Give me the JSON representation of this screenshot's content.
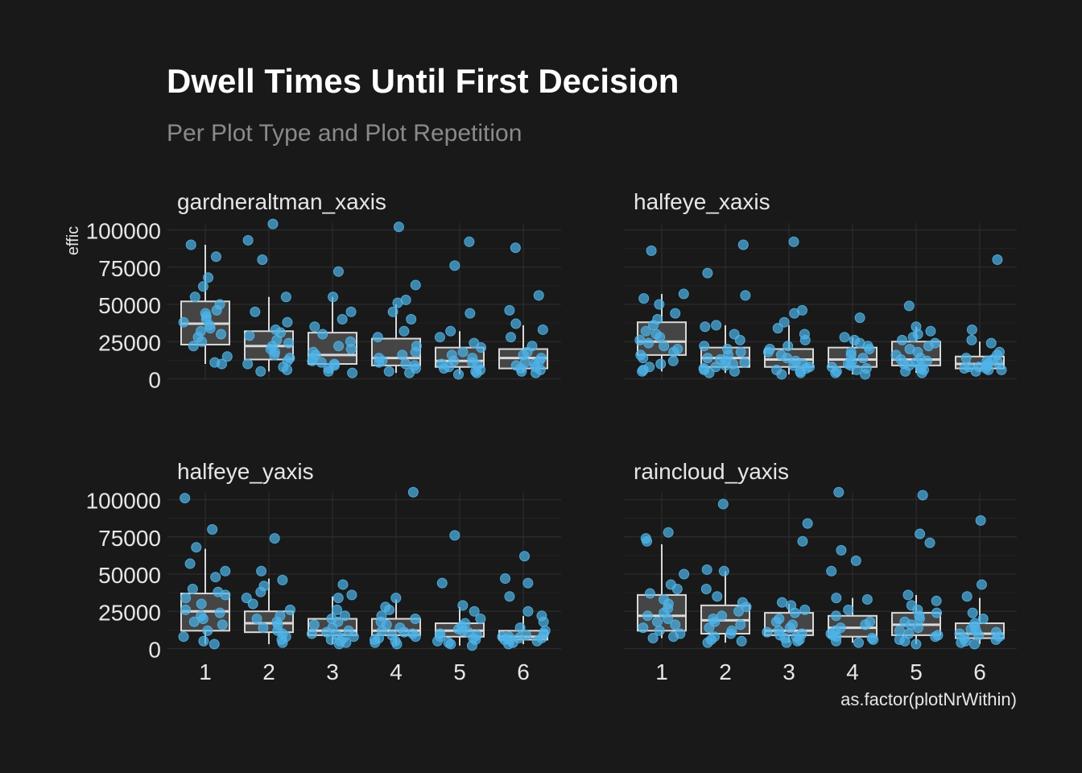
{
  "title": "Dwell Times Until First Decision",
  "subtitle": "Per Plot Type and Plot Repetition",
  "colors": {
    "background": "#191919",
    "point": "#4fb3e8",
    "box_fill": "#4a4a4a",
    "box_stroke": "#d9d9d9",
    "grid": "#2c2c2c",
    "text": "#e6e6e6",
    "subtitle": "#8a8a8a"
  },
  "chart_data": {
    "type": "boxplot",
    "title": "Dwell Times Until First Decision",
    "subtitle": "Per Plot Type and Plot Repetition",
    "xlabel": "as.factor(plotNrWithin)",
    "ylabel": "effic",
    "categories": [
      "1",
      "2",
      "3",
      "4",
      "5",
      "6"
    ],
    "y_ticks": [
      0,
      25000,
      50000,
      75000,
      100000
    ],
    "y_tick_labels": [
      "0",
      "25000",
      "50000",
      "75000",
      "100000"
    ],
    "ylim": [
      0,
      105000
    ],
    "grid": true,
    "facets": [
      {
        "label": "gardneraltman_xaxis",
        "boxes": [
          {
            "category": "1",
            "q1": 23000,
            "median": 37000,
            "q3": 52000,
            "whisker_low": 10000,
            "whisker_high": 90000
          },
          {
            "category": "2",
            "q1": 13000,
            "median": 22000,
            "q3": 32000,
            "whisker_low": 5000,
            "whisker_high": 55000
          },
          {
            "category": "3",
            "q1": 10000,
            "median": 16000,
            "q3": 31000,
            "whisker_low": 4000,
            "whisker_high": 55000
          },
          {
            "category": "4",
            "q1": 9000,
            "median": 14000,
            "q3": 27000,
            "whisker_low": 4000,
            "whisker_high": 50000
          },
          {
            "category": "5",
            "q1": 8000,
            "median": 12000,
            "q3": 21000,
            "whisker_low": 3000,
            "whisker_high": 32000
          },
          {
            "category": "6",
            "q1": 7000,
            "median": 14000,
            "q3": 20000,
            "whisker_low": 4000,
            "whisker_high": 36000
          }
        ],
        "points": [
          [
            90000,
            82000,
            68000,
            62000,
            55000,
            50000,
            46000,
            44000,
            42000,
            40000,
            38000,
            36000,
            34000,
            32000,
            30000,
            28000,
            25000,
            22000,
            15000,
            11000,
            10000
          ],
          [
            104000,
            93000,
            80000,
            55000,
            45000,
            38000,
            33000,
            31000,
            29000,
            26000,
            24000,
            22000,
            20000,
            18000,
            16000,
            14000,
            12000,
            10000,
            8000,
            6000,
            5000
          ],
          [
            72000,
            55000,
            45000,
            40000,
            35000,
            30000,
            25000,
            22000,
            20000,
            18000,
            16000,
            14000,
            12000,
            11000,
            10000,
            9000,
            7000,
            5000,
            4000
          ],
          [
            102000,
            63000,
            53000,
            51000,
            45000,
            40000,
            32000,
            28000,
            22000,
            18000,
            16000,
            14000,
            12000,
            11000,
            10000,
            9000,
            7000,
            5000,
            4000
          ],
          [
            92000,
            76000,
            44000,
            32000,
            28000,
            24000,
            21000,
            18000,
            16000,
            14000,
            12000,
            11000,
            10000,
            9000,
            8000,
            7000,
            6000,
            5000,
            4000,
            3000
          ],
          [
            88000,
            56000,
            46000,
            37000,
            33000,
            28000,
            22000,
            18000,
            16000,
            14000,
            12000,
            11000,
            10000,
            9000,
            8000,
            7000,
            6000,
            5000,
            4000
          ]
        ]
      },
      {
        "label": "halfeye_xaxis",
        "boxes": [
          {
            "category": "1",
            "q1": 16000,
            "median": 25000,
            "q3": 38000,
            "whisker_low": 5000,
            "whisker_high": 57000
          },
          {
            "category": "2",
            "q1": 8000,
            "median": 14000,
            "q3": 21000,
            "whisker_low": 4000,
            "whisker_high": 36000
          },
          {
            "category": "3",
            "q1": 8000,
            "median": 13000,
            "q3": 20000,
            "whisker_low": 3000,
            "whisker_high": 36000
          },
          {
            "category": "4",
            "q1": 8000,
            "median": 13000,
            "q3": 21000,
            "whisker_low": 3000,
            "whisker_high": 28000
          },
          {
            "category": "5",
            "q1": 9000,
            "median": 13000,
            "q3": 25000,
            "whisker_low": 4000,
            "whisker_high": 35000
          },
          {
            "category": "6",
            "q1": 7000,
            "median": 10000,
            "q3": 15000,
            "whisker_low": 5000,
            "whisker_high": 25000
          }
        ],
        "points": [
          [
            86000,
            57000,
            54000,
            50000,
            44000,
            40000,
            36000,
            32000,
            30000,
            28000,
            26000,
            24000,
            22000,
            20000,
            18000,
            16000,
            14000,
            12000,
            10000,
            8000,
            6000,
            5000
          ],
          [
            90000,
            71000,
            56000,
            36000,
            35000,
            30000,
            26000,
            22000,
            20000,
            18000,
            16000,
            14000,
            13000,
            12000,
            11000,
            10000,
            9000,
            8000,
            7000,
            6000,
            5000,
            4000
          ],
          [
            92000,
            46000,
            44000,
            38000,
            34000,
            30000,
            26000,
            22000,
            20000,
            18000,
            16000,
            14000,
            12000,
            10000,
            9000,
            8000,
            7000,
            6000,
            5000,
            4000,
            3000
          ],
          [
            41000,
            28000,
            26000,
            24000,
            22000,
            20000,
            18000,
            16000,
            14000,
            12000,
            10000,
            9000,
            8000,
            7000,
            6000,
            5000,
            4000,
            3000
          ],
          [
            49000,
            35000,
            32000,
            30000,
            28000,
            26000,
            24000,
            22000,
            20000,
            18000,
            16000,
            14000,
            13000,
            12000,
            11000,
            10000,
            9000,
            8000,
            7000,
            6000,
            5000,
            4000
          ],
          [
            80000,
            33000,
            26000,
            24000,
            18000,
            16000,
            14000,
            13000,
            12000,
            11000,
            10000,
            9000,
            9000,
            8000,
            8000,
            7000,
            7000,
            6000,
            6000,
            5000
          ]
        ]
      },
      {
        "label": "halfeye_yaxis",
        "boxes": [
          {
            "category": "1",
            "q1": 12000,
            "median": 25000,
            "q3": 37000,
            "whisker_low": 3000,
            "whisker_high": 67000
          },
          {
            "category": "2",
            "q1": 11000,
            "median": 17000,
            "q3": 25000,
            "whisker_low": 3000,
            "whisker_high": 47000
          },
          {
            "category": "3",
            "q1": 9000,
            "median": 12000,
            "q3": 20000,
            "whisker_low": 3000,
            "whisker_high": 35000
          },
          {
            "category": "4",
            "q1": 9000,
            "median": 12000,
            "q3": 20000,
            "whisker_low": 3000,
            "whisker_high": 33000
          },
          {
            "category": "5",
            "q1": 8000,
            "median": 12000,
            "q3": 17000,
            "whisker_low": 2000,
            "whisker_high": 28000
          },
          {
            "category": "6",
            "q1": 6000,
            "median": 8000,
            "q3": 12000,
            "whisker_low": 3000,
            "whisker_high": 22000
          }
        ],
        "points": [
          [
            101000,
            80000,
            68000,
            57000,
            52000,
            48000,
            40000,
            38000,
            36000,
            34000,
            30000,
            26000,
            24000,
            22000,
            20000,
            18000,
            16000,
            12000,
            8000,
            5000,
            3000
          ],
          [
            74000,
            52000,
            46000,
            42000,
            38000,
            34000,
            30000,
            26000,
            22000,
            20000,
            18000,
            16000,
            14000,
            12000,
            10000,
            8000,
            6000,
            4000
          ],
          [
            43000,
            36000,
            34000,
            26000,
            22000,
            20000,
            18000,
            16000,
            14000,
            12000,
            11000,
            10000,
            9000,
            8000,
            7000,
            6000,
            5000,
            4000,
            3000
          ],
          [
            105000,
            34000,
            28000,
            26000,
            22000,
            20000,
            18000,
            16000,
            14000,
            12000,
            11000,
            10000,
            9000,
            8000,
            7000,
            6000,
            5000,
            4000,
            3000
          ],
          [
            76000,
            44000,
            29000,
            25000,
            20000,
            17000,
            15000,
            13000,
            12000,
            11000,
            10000,
            9000,
            8000,
            7000,
            6000,
            5000,
            4000,
            3000,
            2000
          ],
          [
            62000,
            47000,
            44000,
            35000,
            25000,
            22000,
            18000,
            14000,
            12000,
            10000,
            9000,
            8000,
            8000,
            7000,
            7000,
            6000,
            6000,
            5000,
            4000,
            3000
          ]
        ]
      },
      {
        "label": "raincloud_yaxis",
        "boxes": [
          {
            "category": "1",
            "q1": 12000,
            "median": 22000,
            "q3": 36000,
            "whisker_low": 7000,
            "whisker_high": 70000
          },
          {
            "category": "2",
            "q1": 10000,
            "median": 19000,
            "q3": 29000,
            "whisker_low": 4000,
            "whisker_high": 52000
          },
          {
            "category": "3",
            "q1": 9000,
            "median": 12000,
            "q3": 24000,
            "whisker_low": 4000,
            "whisker_high": 30000
          },
          {
            "category": "4",
            "q1": 8000,
            "median": 14000,
            "q3": 22000,
            "whisker_low": 4000,
            "whisker_high": 34000
          },
          {
            "category": "5",
            "q1": 9000,
            "median": 16000,
            "q3": 24000,
            "whisker_low": 3000,
            "whisker_high": 36000
          },
          {
            "category": "6",
            "q1": 7000,
            "median": 10000,
            "q3": 17000,
            "whisker_low": 3000,
            "whisker_high": 34000
          }
        ],
        "points": [
          [
            78000,
            74000,
            72000,
            50000,
            43000,
            40000,
            37000,
            33000,
            30000,
            27000,
            24000,
            22000,
            20000,
            18000,
            16000,
            14000,
            12000,
            10000,
            8000,
            7000
          ],
          [
            97000,
            53000,
            52000,
            40000,
            35000,
            31000,
            28000,
            25000,
            22000,
            20000,
            18000,
            16000,
            14000,
            12000,
            10000,
            8000,
            6000,
            5000,
            4000
          ],
          [
            84000,
            72000,
            31000,
            29000,
            26000,
            24000,
            20000,
            18000,
            16000,
            14000,
            12000,
            11000,
            10000,
            9000,
            8000,
            7000,
            6000,
            5000,
            4000
          ],
          [
            105000,
            66000,
            59000,
            52000,
            34000,
            33000,
            26000,
            22000,
            18000,
            16000,
            14000,
            12000,
            10000,
            9000,
            8000,
            7000,
            6000,
            5000,
            4000
          ],
          [
            103000,
            77000,
            71000,
            36000,
            32000,
            29000,
            26000,
            24000,
            22000,
            20000,
            18000,
            16000,
            14000,
            12000,
            10000,
            9000,
            8000,
            6000,
            5000,
            3000
          ],
          [
            86000,
            43000,
            35000,
            24000,
            20000,
            17000,
            15000,
            13000,
            12000,
            11000,
            10000,
            9000,
            8000,
            7000,
            6000,
            5000,
            4000,
            3000
          ]
        ]
      }
    ]
  }
}
